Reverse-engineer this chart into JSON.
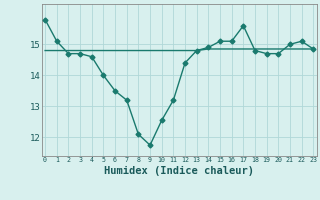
{
  "line1_x": [
    0,
    1,
    2,
    3,
    4,
    5,
    6,
    7,
    8,
    9,
    10,
    11,
    12,
    13,
    14,
    15,
    16,
    17,
    18,
    19,
    20,
    21,
    22,
    23
  ],
  "line1_y": [
    15.8,
    15.1,
    14.7,
    14.7,
    14.6,
    14.0,
    13.5,
    13.2,
    12.1,
    11.75,
    12.55,
    13.2,
    14.4,
    14.8,
    14.9,
    15.1,
    15.1,
    15.6,
    14.8,
    14.7,
    14.7,
    15.0,
    15.1,
    14.85
  ],
  "line2_x": [
    0,
    1,
    2,
    3,
    4,
    5,
    6,
    7,
    8,
    9,
    10,
    11,
    12,
    13,
    14,
    15,
    16,
    17,
    18,
    19,
    20,
    21,
    22,
    23
  ],
  "line2_y": [
    14.8,
    14.8,
    14.8,
    14.8,
    14.8,
    14.8,
    14.8,
    14.8,
    14.8,
    14.8,
    14.8,
    14.8,
    14.8,
    14.8,
    14.85,
    14.85,
    14.85,
    14.85,
    14.85,
    14.85,
    14.85,
    14.85,
    14.85,
    14.85
  ],
  "line_color": "#1a7a6e",
  "bg_color": "#d8f0ee",
  "grid_color": "#b0d8d8",
  "xlabel": "Humidex (Indice chaleur)",
  "xlabel_fontsize": 7.5,
  "ytick_labels": [
    "12",
    "13",
    "14",
    "15"
  ],
  "ytick_vals": [
    12,
    13,
    14,
    15
  ],
  "xticks": [
    0,
    1,
    2,
    3,
    4,
    5,
    6,
    7,
    8,
    9,
    10,
    11,
    12,
    13,
    14,
    15,
    16,
    17,
    18,
    19,
    20,
    21,
    22,
    23
  ],
  "ylim": [
    11.4,
    16.3
  ],
  "xlim": [
    -0.3,
    23.3
  ],
  "marker": "D",
  "markersize": 2.5,
  "linewidth": 1.0
}
